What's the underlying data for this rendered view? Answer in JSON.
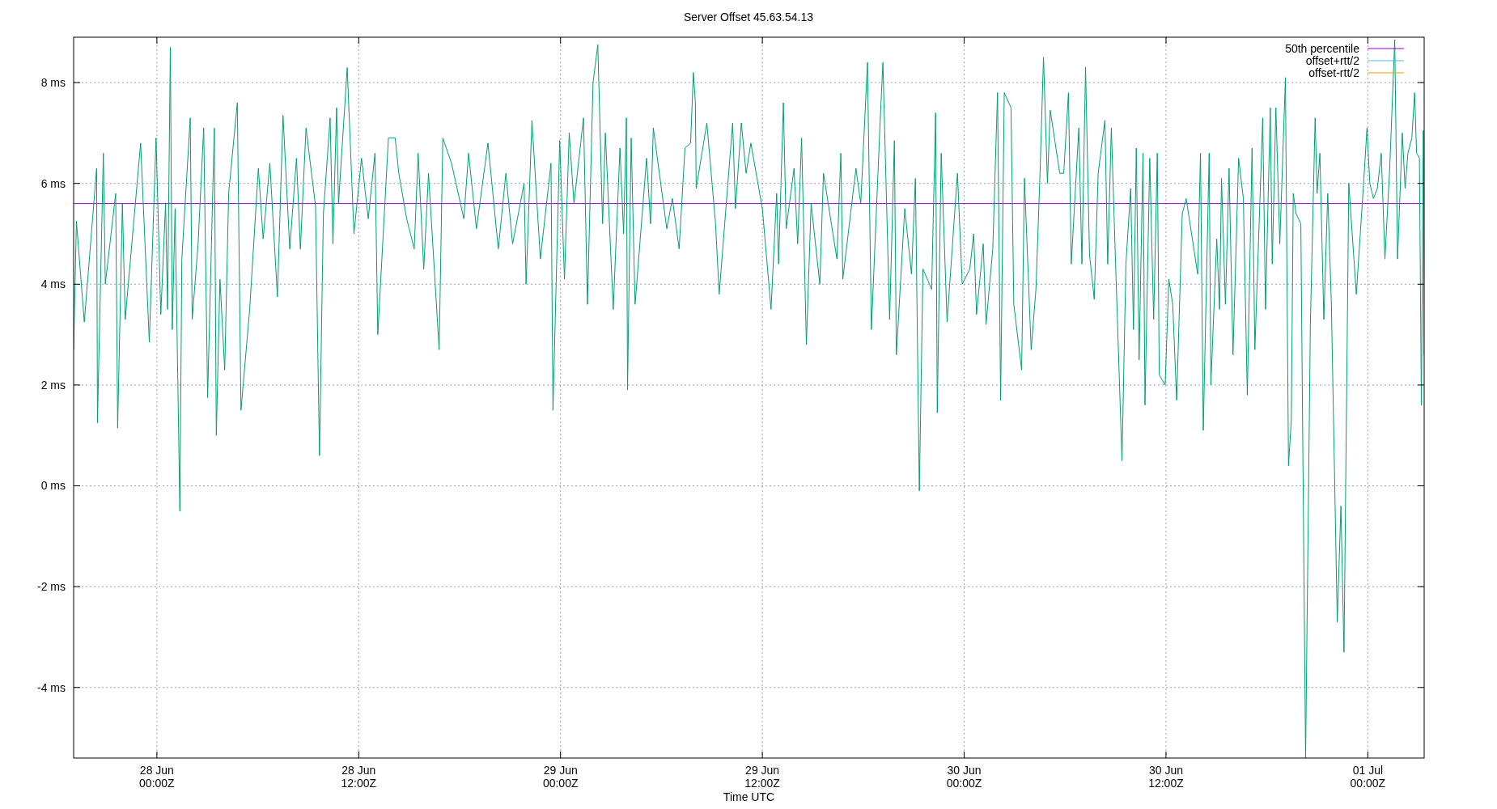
{
  "chart_data": {
    "type": "line",
    "title": "Server Offset 45.63.54.13",
    "xlabel": "Time UTC",
    "xlim": [
      "--06-27T19:03",
      "--07-01T03:21"
    ],
    "xticks": [
      {
        "value": "--06-28T00:00",
        "label": "28 Jun\n00:00Z"
      },
      {
        "value": "--06-28T12:00",
        "label": "28 Jun\n12:00Z"
      },
      {
        "value": "--06-29T00:00",
        "label": "29 Jun\n00:00Z"
      },
      {
        "value": "--06-29T12:00",
        "label": "29 Jun\n12:00Z"
      },
      {
        "value": "--06-30T00:00",
        "label": "30 Jun\n00:00Z"
      },
      {
        "value": "--06-30T12:00",
        "label": "30 Jun\n12:00Z"
      },
      {
        "value": "--07-01T00:00",
        "label": "01 Jul\n00:00Z"
      }
    ],
    "ylim": [
      -5.4,
      8.9
    ],
    "yticks": [
      {
        "value": -4,
        "label": "-4 ms"
      },
      {
        "value": -2,
        "label": "-2 ms"
      },
      {
        "value": 0,
        "label": "0 ms"
      },
      {
        "value": 2,
        "label": "2 ms"
      },
      {
        "value": 4,
        "label": "4 ms"
      },
      {
        "value": 6,
        "label": "6 ms"
      },
      {
        "value": 8,
        "label": "8 ms"
      }
    ],
    "grid": true,
    "legend": "top right",
    "marker": "none",
    "series": [
      {
        "name": "50th percentile",
        "color": "#9400d3",
        "x": [
          "--06-27T19:03",
          "--07-01T03:21"
        ],
        "values": [
          5.6,
          5.6
        ]
      },
      {
        "color": "#009e73",
        "x": [
          "--06-27T19:03",
          "--06-27T19:13",
          "--06-27T19:41",
          "--06-27T20:25",
          "--06-27T20:28",
          "--06-27T20:49",
          "--06-27T20:56",
          "--06-27T21:33",
          "--06-27T21:40",
          "--06-27T21:57",
          "--06-27T22:07",
          "--06-27T23:02",
          "--06-27T23:33",
          "--06-27T23:57",
          "--06-28T00:14",
          "--06-28T00:31",
          "--06-28T00:38",
          "--06-28T00:48",
          "--06-28T00:55",
          "--06-28T01:05",
          "--06-28T01:22",
          "--06-28T01:29",
          "--06-28T01:59",
          "--06-28T02:06",
          "--06-28T02:27",
          "--06-28T02:47",
          "--06-28T03:01",
          "--06-28T03:25",
          "--06-28T03:32",
          "--06-28T03:45",
          "--06-28T04:02",
          "--06-28T04:16",
          "--06-28T04:47",
          "--06-28T05:00",
          "--06-28T05:31",
          "--06-28T06:02",
          "--06-28T06:19",
          "--06-28T06:43",
          "--06-28T07:10",
          "--06-28T07:30",
          "--06-28T07:54",
          "--06-28T08:18",
          "--06-28T08:32",
          "--06-28T08:52",
          "--06-28T09:26",
          "--06-28T09:40",
          "--06-28T09:54",
          "--06-28T10:18",
          "--06-28T10:28",
          "--06-28T10:41",
          "--06-28T10:48",
          "--06-28T11:19",
          "--06-28T11:43",
          "--06-28T12:10",
          "--06-28T12:34",
          "--06-28T12:58",
          "--06-28T13:08",
          "--06-28T13:46",
          "--06-28T14:10",
          "--06-28T14:23",
          "--06-28T14:51",
          "--06-28T15:18",
          "--06-28T15:32",
          "--06-28T15:52",
          "--06-28T16:09",
          "--06-28T16:47",
          "--06-28T17:00",
          "--06-28T17:31",
          "--06-28T18:15",
          "--06-28T18:32",
          "--06-28T19:00",
          "--06-28T19:41",
          "--06-28T20:18",
          "--06-28T20:45",
          "--06-28T21:09",
          "--06-28T21:50",
          "--06-28T21:57",
          "--06-28T22:18",
          "--06-28T22:48",
          "--06-28T23:26",
          "--06-28T23:33",
          "--06-28T23:57",
          "--06-29T00:14",
          "--06-29T00:31",
          "--06-29T00:48",
          "--06-29T01:22",
          "--06-29T01:36",
          "--06-29T01:56",
          "--06-29T02:13",
          "--06-29T02:30",
          "--06-29T02:40",
          "--06-29T03:08",
          "--06-29T03:32",
          "--06-29T03:45",
          "--06-29T03:55",
          "--06-29T03:59",
          "--06-29T04:12",
          "--06-29T04:26",
          "--06-29T05:07",
          "--06-29T05:21",
          "--06-29T05:31",
          "--06-29T06:19",
          "--06-29T06:39",
          "--06-29T07:03",
          "--06-29T07:24",
          "--06-29T07:44",
          "--06-29T07:54",
          "--06-29T08:01",
          "--06-29T08:04",
          "--06-29T08:42",
          "--06-29T09:13",
          "--06-29T09:26",
          "--06-29T10:04",
          "--06-29T10:14",
          "--06-29T10:24",
          "--06-29T10:45",
          "--06-29T11:02",
          "--06-29T11:19",
          "--06-29T12:00",
          "--06-29T12:31",
          "--06-29T12:51",
          "--06-29T12:58",
          "--06-29T13:15",
          "--06-29T13:25",
          "--06-29T13:53",
          "--06-29T14:06",
          "--06-29T14:20",
          "--06-29T14:37",
          "--06-29T14:54",
          "--06-29T15:25",
          "--06-29T15:38",
          "--06-29T16:26",
          "--06-29T16:40",
          "--06-29T16:47",
          "--06-29T17:34",
          "--06-29T17:51",
          "--06-29T18:15",
          "--06-29T18:29",
          "--06-29T19:00",
          "--06-29T19:10",
          "--06-29T19:34",
          "--06-29T19:51",
          "--06-29T19:58",
          "--06-29T20:28",
          "--06-29T20:52",
          "--06-29T21:06",
          "--06-29T21:20",
          "--06-29T21:33",
          "--06-29T22:04",
          "--06-29T22:18",
          "--06-29T22:24",
          "--06-29T22:38",
          "--06-29T22:59",
          "--06-29T23:36",
          "--06-29T23:53",
          "--06-30T00:20",
          "--06-30T00:34",
          "--06-30T00:44",
          "--06-30T01:08",
          "--06-30T01:18",
          "--06-30T01:42",
          "--06-30T01:59",
          "--06-30T02:10",
          "--06-30T02:23",
          "--06-30T02:47",
          "--06-30T02:57",
          "--06-30T03:25",
          "--06-30T03:35",
          "--06-30T03:59",
          "--06-30T04:16",
          "--06-30T04:30",
          "--06-30T04:43",
          "--06-30T04:57",
          "--06-30T05:07",
          "--06-30T05:41",
          "--06-30T05:55",
          "--06-30T06:12",
          "--06-30T06:22",
          "--06-30T06:49",
          "--06-30T07:00",
          "--06-30T07:13",
          "--06-30T07:27",
          "--06-30T07:44",
          "--06-30T07:58",
          "--06-30T08:22",
          "--06-30T08:32",
          "--06-30T08:45",
          "--06-30T08:59",
          "--06-30T09:23",
          "--06-30T09:37",
          "--06-30T09:54",
          "--06-30T10:04",
          "--06-30T10:14",
          "--06-30T10:24",
          "--06-30T10:38",
          "--06-30T10:45",
          "--06-30T11:02",
          "--06-30T11:16",
          "--06-30T11:29",
          "--06-30T11:36",
          "--06-30T11:57",
          "--06-30T12:10",
          "--06-30T12:24",
          "--06-30T12:38",
          "--06-30T12:58",
          "--06-30T13:12",
          "--06-30T13:53",
          "--06-30T14:03",
          "--06-30T14:13",
          "--06-30T14:34",
          "--06-30T14:40",
          "--06-30T15:01",
          "--06-30T15:11",
          "--06-30T15:18",
          "--06-30T15:32",
          "--06-30T15:45",
          "--06-30T15:59",
          "--06-30T16:19",
          "--06-30T16:36",
          "--06-30T16:50",
          "--06-30T17:07",
          "--06-30T17:17",
          "--06-30T17:45",
          "--06-30T17:55",
          "--06-30T18:12",
          "--06-30T18:19",
          "--06-30T18:32",
          "--06-30T18:46",
          "--06-30T19:06",
          "--06-30T19:17",
          "--06-30T19:27",
          "--06-30T19:34",
          "--06-30T19:44",
          "--06-30T20:01",
          "--06-30T20:18",
          "--06-30T20:35",
          "--06-30T20:52",
          "--06-30T20:59",
          "--06-30T21:09",
          "--06-30T21:23",
          "--06-30T21:37",
          "--06-30T21:50",
          "--06-30T22:11",
          "--06-30T22:24",
          "--06-30T22:35",
          "--06-30T22:52",
          "--06-30T23:19",
          "--06-30T23:46",
          "--06-30T23:57",
          "--07-01T00:07",
          "--07-01T00:20",
          "--07-01T00:34",
          "--07-01T00:48",
          "--07-01T01:01",
          "--07-01T01:18",
          "--07-01T01:36",
          "--07-01T01:46",
          "--07-01T02:03",
          "--07-01T02:13",
          "--07-01T02:23",
          "--07-01T02:37",
          "--07-01T02:47",
          "--07-01T02:54",
          "--07-01T03:04",
          "--07-01T03:11",
          "--07-01T03:18",
          "--07-01T03:21"
        ],
        "values": [
          2.7,
          5.25,
          3.25,
          6.3,
          1.25,
          6.6,
          4.0,
          5.8,
          1.15,
          5.6,
          3.3,
          6.8,
          2.85,
          6.9,
          3.4,
          5.6,
          3.5,
          8.7,
          3.1,
          5.5,
          -0.5,
          4.5,
          7.3,
          3.3,
          4.8,
          7.1,
          1.75,
          7.1,
          1.0,
          4.1,
          2.3,
          5.8,
          7.6,
          1.5,
          3.5,
          6.3,
          4.9,
          6.4,
          3.75,
          7.35,
          4.7,
          6.5,
          4.7,
          7.1,
          5.55,
          0.6,
          5.4,
          7.3,
          4.8,
          7.5,
          5.6,
          8.3,
          5.0,
          6.5,
          5.3,
          6.6,
          3.0,
          6.9,
          6.9,
          6.2,
          5.3,
          4.7,
          6.6,
          4.3,
          6.2,
          2.7,
          6.9,
          6.4,
          5.3,
          6.6,
          5.1,
          6.8,
          4.7,
          6.2,
          4.8,
          6.0,
          4.0,
          7.25,
          4.5,
          6.4,
          1.5,
          6.85,
          4.1,
          7.0,
          5.6,
          7.3,
          3.6,
          8.0,
          8.75,
          5.2,
          7.0,
          3.5,
          6.7,
          5.0,
          7.3,
          1.9,
          6.9,
          3.6,
          6.5,
          5.2,
          7.1,
          5.1,
          5.7,
          4.7,
          6.7,
          6.8,
          8.2,
          7.6,
          5.9,
          7.2,
          5.2,
          3.8,
          6.5,
          7.2,
          5.5,
          7.2,
          6.2,
          6.8,
          5.5,
          3.5,
          5.8,
          4.4,
          7.6,
          5.1,
          6.3,
          4.8,
          6.9,
          2.8,
          5.6,
          4.0,
          6.2,
          4.5,
          6.6,
          4.1,
          6.3,
          5.6,
          8.4,
          3.1,
          7.2,
          8.4,
          3.3,
          6.85,
          2.6,
          5.5,
          4.2,
          6.1,
          -0.1,
          4.3,
          3.9,
          7.4,
          1.45,
          6.6,
          3.25,
          6.2,
          4.0,
          4.3,
          5.0,
          3.4,
          4.8,
          3.2,
          4.7,
          7.8,
          1.7,
          7.8,
          7.5,
          3.6,
          2.3,
          6.1,
          2.7,
          3.9,
          6.1,
          8.5,
          6.0,
          7.45,
          6.2,
          6.2,
          7.8,
          4.4,
          7.1,
          4.4,
          8.3,
          4.6,
          3.7,
          6.2,
          7.25,
          4.4,
          7.1,
          4.6,
          0.5,
          4.4,
          5.9,
          3.1,
          6.7,
          2.5,
          6.6,
          1.6,
          6.5,
          3.3,
          6.6,
          2.2,
          2.0,
          4.1,
          3.6,
          1.7,
          5.4,
          5.7,
          4.2,
          6.6,
          1.1,
          6.6,
          2.0,
          4.9,
          3.5,
          6.1,
          3.6,
          6.3,
          2.6,
          6.5,
          5.7,
          1.8,
          6.7,
          2.7,
          7.3,
          3.5,
          7.5,
          4.4,
          7.5,
          4.8,
          8.1,
          0.4,
          1.3,
          5.8,
          5.4,
          5.2,
          -5.4,
          3.2,
          7.3,
          5.8,
          6.6,
          3.3,
          5.8,
          3.6,
          -2.7,
          -0.4,
          -3.3,
          6.0,
          3.8,
          6.1,
          7.1,
          6.0,
          5.7,
          5.9,
          6.6,
          4.5,
          6.3,
          8.85,
          4.5,
          7.0,
          5.9,
          6.6,
          6.9,
          7.8,
          6.6,
          6.5,
          1.6,
          7.05,
          2.6
        ]
      },
      {
        "name": "offset+rtt/2",
        "color": "#56b4e9"
      },
      {
        "name": "offset-rtt/2",
        "color": "#e69f00"
      }
    ]
  }
}
